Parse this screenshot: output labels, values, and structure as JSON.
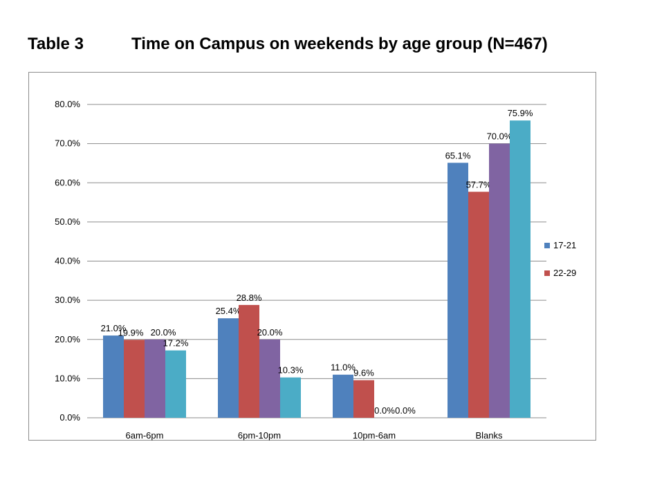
{
  "slide": {
    "table_label": "Table 3",
    "title_text": "Time on Campus on weekends by age group (N=467)"
  },
  "chart_data": {
    "type": "bar",
    "title": "Time on Campus on weekends by age group (N=467)",
    "categories": [
      "6am-6pm",
      "6pm-10pm",
      "10pm-6am",
      "Blanks"
    ],
    "series": [
      {
        "name": "17-21",
        "color": "#4f81bd",
        "values": [
          21.0,
          25.4,
          11.0,
          65.1
        ],
        "labels": [
          "21.0%",
          "25.4%",
          "11.0%",
          "65.1%"
        ]
      },
      {
        "name": "22-29",
        "color": "#c0504d",
        "values": [
          19.9,
          28.8,
          9.6,
          57.7
        ],
        "labels": [
          "19.9%",
          "28.8%",
          "9.6%",
          "57.7%"
        ]
      },
      {
        "name": "",
        "color": "#8064a2",
        "values": [
          20.0,
          20.0,
          0.0,
          70.0
        ],
        "labels": [
          "20.0%",
          "20.0%",
          "0.0%",
          "70.0%"
        ]
      },
      {
        "name": "",
        "color": "#4bacc6",
        "values": [
          17.2,
          10.3,
          0.0,
          75.9
        ],
        "labels": [
          "17.2%",
          "10.3%",
          "0.0%",
          "75.9%"
        ]
      }
    ],
    "yticks": [
      "0.0%",
      "10.0%",
      "20.0%",
      "30.0%",
      "40.0%",
      "50.0%",
      "60.0%",
      "70.0%",
      "80.0%"
    ],
    "ylim": [
      0,
      80
    ],
    "xlabel": "",
    "ylabel": "",
    "grid": true,
    "legend_position": "right"
  }
}
